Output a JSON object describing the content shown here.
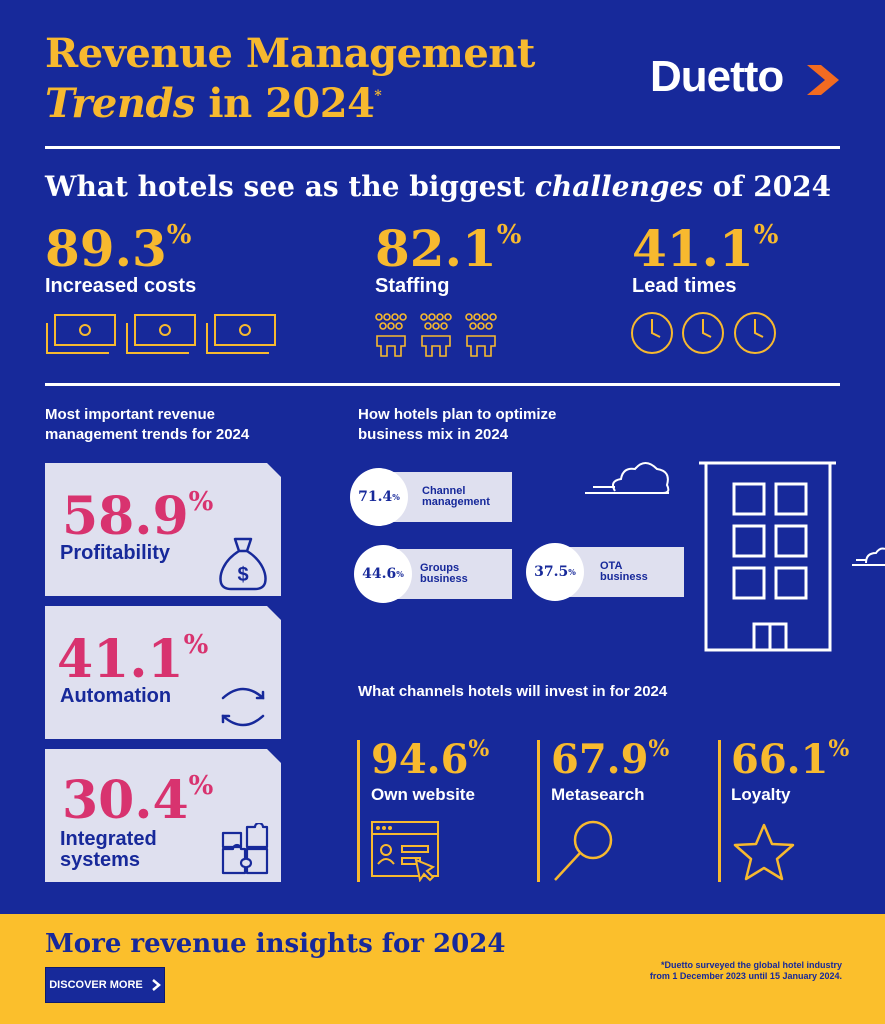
{
  "header": {
    "title_line1": "Revenue Management",
    "title_line2_italic": "Trends",
    "title_line2_rest": " in 2024",
    "title_asterisk": "*",
    "logo_text": "Duetto"
  },
  "challenges": {
    "heading_pre": "What hotels see as the biggest ",
    "heading_italic": "challenges",
    "heading_post": " of 2024",
    "percent_sign": "%",
    "items": [
      {
        "value": "89.3",
        "label": "Increased costs"
      },
      {
        "value": "82.1",
        "label": "Staffing"
      },
      {
        "value": "41.1",
        "label": "Lead times"
      }
    ]
  },
  "trends": {
    "heading_line1": "Most important revenue",
    "heading_line2": "management trends for 2024",
    "items": [
      {
        "value": "58.9",
        "label_line1": "Profitability",
        "label_line2": ""
      },
      {
        "value": "41.1",
        "label_line1": "Automation",
        "label_line2": ""
      },
      {
        "value": "30.4",
        "label_line1": "Integrated",
        "label_line2": "systems"
      }
    ]
  },
  "business_mix": {
    "heading_line1": "How hotels plan to optimize",
    "heading_line2": "business mix in 2024",
    "items": [
      {
        "value": "71.4",
        "label_line1": "Channel",
        "label_line2": "management"
      },
      {
        "value": "44.6",
        "label_line1": "Groups",
        "label_line2": "business"
      },
      {
        "value": "37.5",
        "label_line1": "OTA",
        "label_line2": "business"
      }
    ]
  },
  "channels": {
    "heading": "What channels hotels will invest in for 2024",
    "items": [
      {
        "value": "94.6",
        "label": "Own website"
      },
      {
        "value": "67.9",
        "label": "Metasearch"
      },
      {
        "value": "66.1",
        "label": "Loyalty"
      }
    ]
  },
  "footer": {
    "heading": "More revenue insights for 2024",
    "button_label": "DISCOVER MORE",
    "footnote_line1": "*Duetto surveyed the global hotel industry",
    "footnote_line2": "from 1 December 2023 until 15 January 2024."
  },
  "colors": {
    "background": "#17299a",
    "gold": "#f7b92f",
    "pink": "#d8336f",
    "card": "#dfe0ef",
    "accent_orange": "#f26b21"
  }
}
